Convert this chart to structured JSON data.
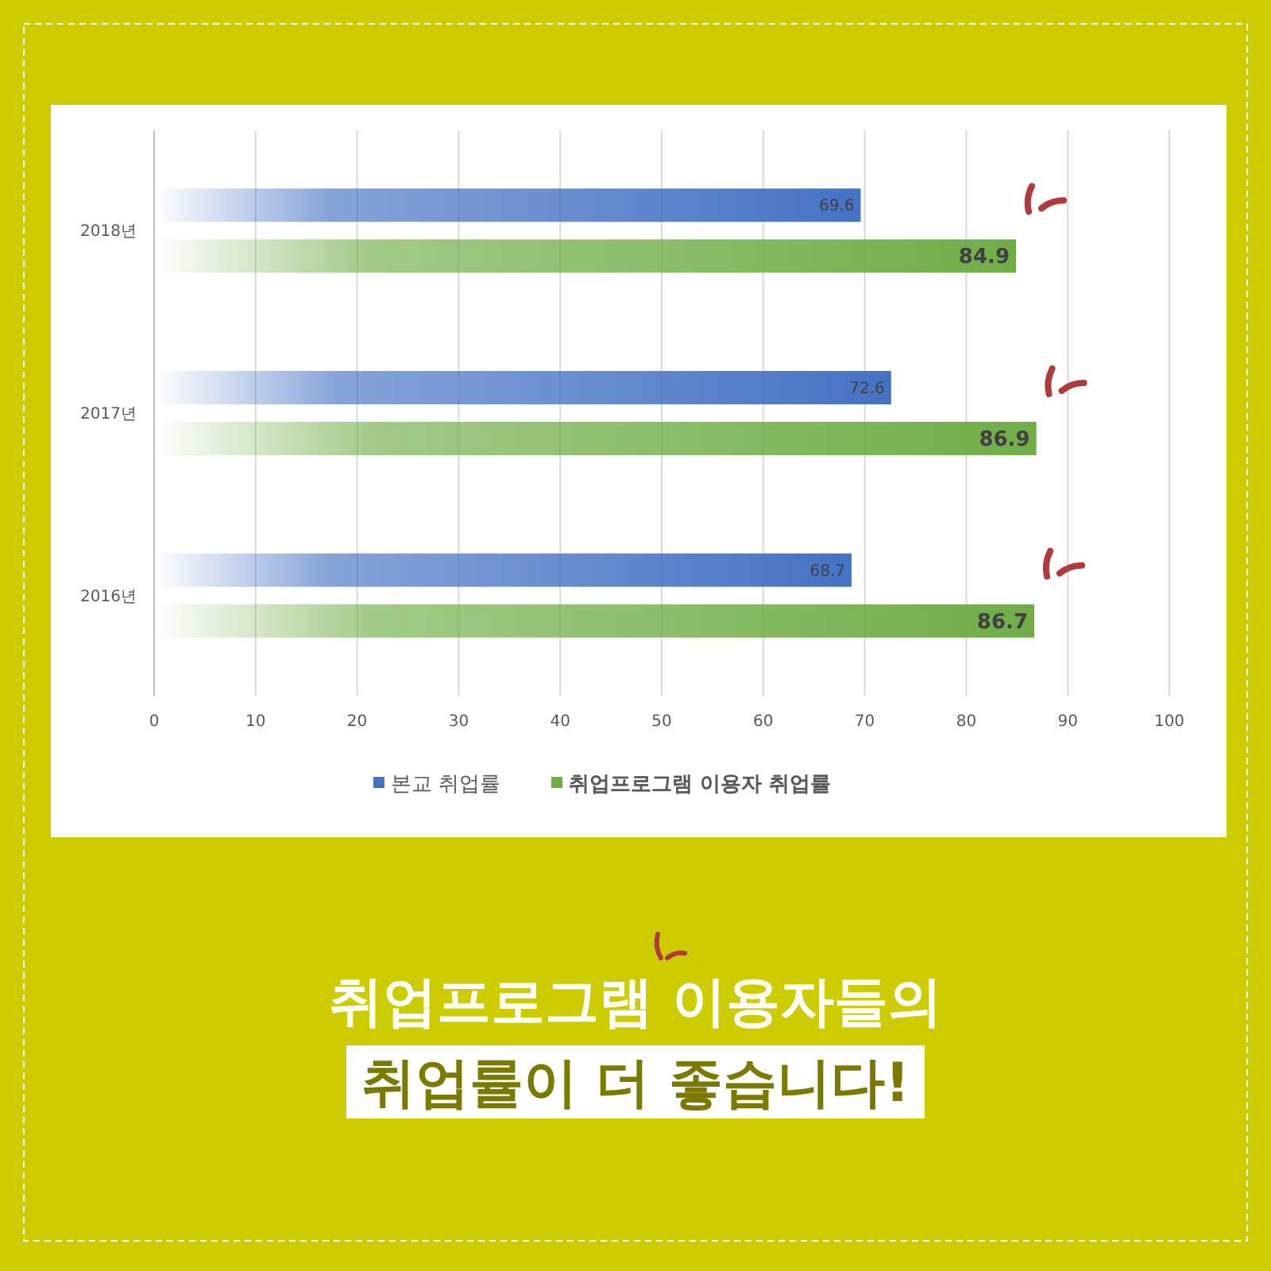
{
  "chart_data": {
    "type": "bar",
    "orientation": "horizontal",
    "title": "취업프로그램 이용자들의",
    "subtitle": "취업률이 더 좋습니다!",
    "categories": [
      "2018년",
      "2017년",
      "2016년"
    ],
    "series": [
      {
        "name": "본교 취업률",
        "color": "#4472c4",
        "values": [
          69.6,
          72.6,
          68.7
        ]
      },
      {
        "name": "취업프로그램 이용자 취업률",
        "color": "#70ad47",
        "values": [
          84.9,
          86.9,
          86.7
        ]
      }
    ],
    "xlim": [
      0,
      100
    ],
    "xticks": [
      0,
      10,
      20,
      30,
      40,
      50,
      60,
      70,
      80,
      90,
      100
    ],
    "grid": "x",
    "legend": "bottom",
    "data_labels": true
  }
}
